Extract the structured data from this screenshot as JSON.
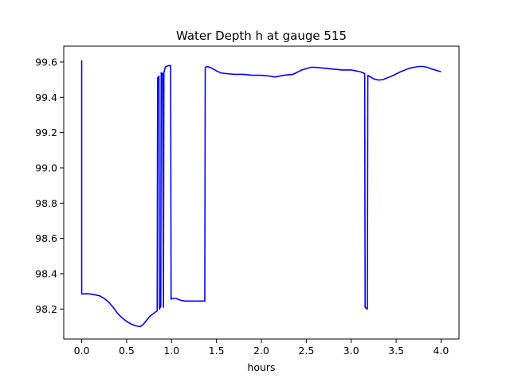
{
  "chart_data": {
    "type": "line",
    "title": "Water Depth h at gauge 515",
    "xlabel": "hours",
    "ylabel": "",
    "xlim": [
      -0.2,
      4.2
    ],
    "ylim": [
      98.03,
      99.69
    ],
    "xticks": [
      0.0,
      0.5,
      1.0,
      1.5,
      2.0,
      2.5,
      3.0,
      3.5,
      4.0
    ],
    "xtick_labels": [
      "0.0",
      "0.5",
      "1.0",
      "1.5",
      "2.0",
      "2.5",
      "3.0",
      "3.5",
      "4.0"
    ],
    "yticks": [
      98.2,
      98.4,
      98.6,
      98.8,
      99.0,
      99.2,
      99.4,
      99.6
    ],
    "ytick_labels": [
      "98.2",
      "98.4",
      "98.6",
      "98.8",
      "99.0",
      "99.2",
      "99.4",
      "99.6"
    ],
    "grid": false,
    "colors": {
      "line": "#0000ff",
      "axes": "#000000",
      "background": "#ffffff"
    },
    "series": [
      {
        "x": [
          0.0,
          0.0,
          0.05,
          0.1,
          0.15,
          0.2,
          0.25,
          0.3,
          0.35,
          0.4,
          0.45,
          0.5,
          0.55,
          0.6,
          0.65,
          0.68,
          0.72,
          0.76,
          0.8,
          0.84,
          0.845,
          0.86,
          0.865,
          0.88,
          0.885,
          0.9,
          0.91,
          0.915,
          0.93,
          0.935,
          0.94,
          0.97,
          0.99,
          0.995,
          1.0,
          1.05,
          1.1,
          1.15,
          1.2,
          1.25,
          1.3,
          1.37,
          1.375,
          1.4,
          1.45,
          1.5,
          1.55,
          1.6,
          1.7,
          1.8,
          1.9,
          2.0,
          2.1,
          2.15,
          2.25,
          2.35,
          2.45,
          2.55,
          2.6,
          2.7,
          2.8,
          2.9,
          3.0,
          3.1,
          3.15,
          3.155,
          3.18,
          3.185,
          3.2,
          3.25,
          3.3,
          3.35,
          3.45,
          3.55,
          3.65,
          3.75,
          3.8,
          3.85,
          3.9,
          4.0
        ],
        "y": [
          99.61,
          98.285,
          98.287,
          98.285,
          98.28,
          98.275,
          98.26,
          98.24,
          98.21,
          98.175,
          98.15,
          98.13,
          98.115,
          98.105,
          98.1,
          98.11,
          98.135,
          98.16,
          98.175,
          98.19,
          99.51,
          99.52,
          98.2,
          98.215,
          99.54,
          99.535,
          98.21,
          99.54,
          99.57,
          99.575,
          99.575,
          99.58,
          99.58,
          98.255,
          98.26,
          98.26,
          98.25,
          98.245,
          98.245,
          98.245,
          98.245,
          98.245,
          99.57,
          99.575,
          99.565,
          99.55,
          99.538,
          99.535,
          99.53,
          99.53,
          99.525,
          99.525,
          99.52,
          99.515,
          99.525,
          99.53,
          99.555,
          99.57,
          99.57,
          99.565,
          99.56,
          99.555,
          99.555,
          99.545,
          99.535,
          98.21,
          98.2,
          99.525,
          99.52,
          99.505,
          99.498,
          99.5,
          99.52,
          99.545,
          99.565,
          99.575,
          99.575,
          99.57,
          99.56,
          99.545
        ]
      }
    ]
  }
}
